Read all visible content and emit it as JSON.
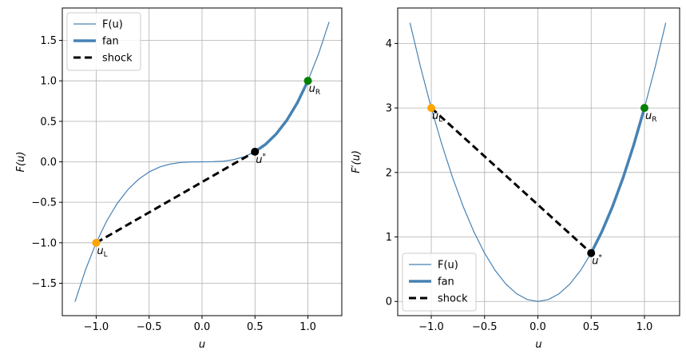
{
  "chart_data": [
    {
      "type": "line",
      "xlabel": "u",
      "ylabel": "F(u)",
      "xlim": [
        -1.32,
        1.32
      ],
      "ylim": [
        -1.9,
        1.9
      ],
      "xticks": [
        {
          "value": -1,
          "label": "−1.0"
        },
        {
          "value": -0.5,
          "label": "−0.5"
        },
        {
          "value": 0,
          "label": "0.0"
        },
        {
          "value": 0.5,
          "label": "0.5"
        },
        {
          "value": 1,
          "label": "1.0"
        }
      ],
      "yticks": [
        {
          "value": -1.5,
          "label": "−1.5"
        },
        {
          "value": -1,
          "label": "−1.0"
        },
        {
          "value": -0.5,
          "label": "−0.5"
        },
        {
          "value": 0,
          "label": "0.0"
        },
        {
          "value": 0.5,
          "label": "0.5"
        },
        {
          "value": 1,
          "label": "1.0"
        },
        {
          "value": 1.5,
          "label": "1.5"
        }
      ],
      "grid": true,
      "legend": "upper left",
      "series": [
        {
          "name": "F(u)",
          "color": "#4682b4",
          "style": "thin",
          "x": [
            -1.2,
            -1.1,
            -1,
            -0.9,
            -0.8,
            -0.7,
            -0.6,
            -0.5,
            -0.4,
            -0.3,
            -0.2,
            -0.1,
            0,
            0.1,
            0.2,
            0.3,
            0.4,
            0.5,
            0.6,
            0.7,
            0.8,
            0.9,
            1,
            1.1,
            1.2
          ],
          "values": [
            -1.728,
            -1.331,
            -1,
            -0.729,
            -0.512,
            -0.343,
            -0.216,
            -0.125,
            -0.064,
            -0.027,
            -0.008,
            -0.001,
            0,
            0.001,
            0.008,
            0.027,
            0.064,
            0.125,
            0.216,
            0.343,
            0.512,
            0.729,
            1,
            1.331,
            1.728
          ]
        },
        {
          "name": "fan",
          "color": "#4682b4",
          "style": "thick",
          "x": [
            0.5,
            0.6,
            0.7,
            0.8,
            0.9,
            1
          ],
          "values": [
            0.125,
            0.216,
            0.343,
            0.512,
            0.729,
            1
          ]
        },
        {
          "name": "shock",
          "color": "#000000",
          "style": "dashed",
          "x": [
            -1,
            0.5
          ],
          "values": [
            -1,
            0.125
          ]
        }
      ],
      "points": [
        {
          "x": -1,
          "y": -1,
          "color": "#ffa500",
          "label": "u",
          "sub": "L"
        },
        {
          "x": 0.5,
          "y": 0.125,
          "color": "#000000",
          "label": "u",
          "sup": "*"
        },
        {
          "x": 1,
          "y": 1,
          "color": "#008000",
          "label": "u",
          "sub": "R"
        }
      ]
    },
    {
      "type": "line",
      "xlabel": "u",
      "ylabel": "F′(u)",
      "xlim": [
        -1.315,
        1.33
      ],
      "ylim": [
        -0.22,
        4.55
      ],
      "xticks": [
        {
          "value": -1,
          "label": "−1.0"
        },
        {
          "value": -0.5,
          "label": "−0.5"
        },
        {
          "value": 0,
          "label": "0.0"
        },
        {
          "value": 0.5,
          "label": "0.5"
        },
        {
          "value": 1,
          "label": "1.0"
        }
      ],
      "yticks": [
        0,
        1,
        2,
        3,
        4
      ],
      "grid": true,
      "legend": "lower left",
      "series": [
        {
          "name": "F(u)",
          "color": "#4682b4",
          "style": "thin",
          "x": [
            -1.2,
            -1.1,
            -1,
            -0.9,
            -0.8,
            -0.7,
            -0.6,
            -0.5,
            -0.4,
            -0.3,
            -0.2,
            -0.1,
            0,
            0.1,
            0.2,
            0.3,
            0.4,
            0.5,
            0.6,
            0.7,
            0.8,
            0.9,
            1,
            1.1,
            1.2
          ],
          "values": [
            4.32,
            3.63,
            3,
            2.43,
            1.92,
            1.47,
            1.08,
            0.75,
            0.48,
            0.27,
            0.12,
            0.03,
            0,
            0.03,
            0.12,
            0.27,
            0.48,
            0.75,
            1.08,
            1.47,
            1.92,
            2.43,
            3,
            3.63,
            4.32
          ]
        },
        {
          "name": "fan",
          "color": "#4682b4",
          "style": "thick",
          "x": [
            0.5,
            0.6,
            0.7,
            0.8,
            0.9,
            1
          ],
          "values": [
            0.75,
            1.08,
            1.47,
            1.92,
            2.43,
            3
          ]
        },
        {
          "name": "shock",
          "color": "#000000",
          "style": "dashed",
          "x": [
            -1,
            0.5
          ],
          "values": [
            3,
            0.75
          ]
        }
      ],
      "points": [
        {
          "x": -1,
          "y": 3,
          "color": "#ffa500",
          "label": "u",
          "sub": "L"
        },
        {
          "x": 0.5,
          "y": 0.75,
          "color": "#000000",
          "label": "u",
          "sup": "*"
        },
        {
          "x": 1,
          "y": 3,
          "color": "#008000",
          "label": "u",
          "sub": "R"
        }
      ]
    }
  ]
}
